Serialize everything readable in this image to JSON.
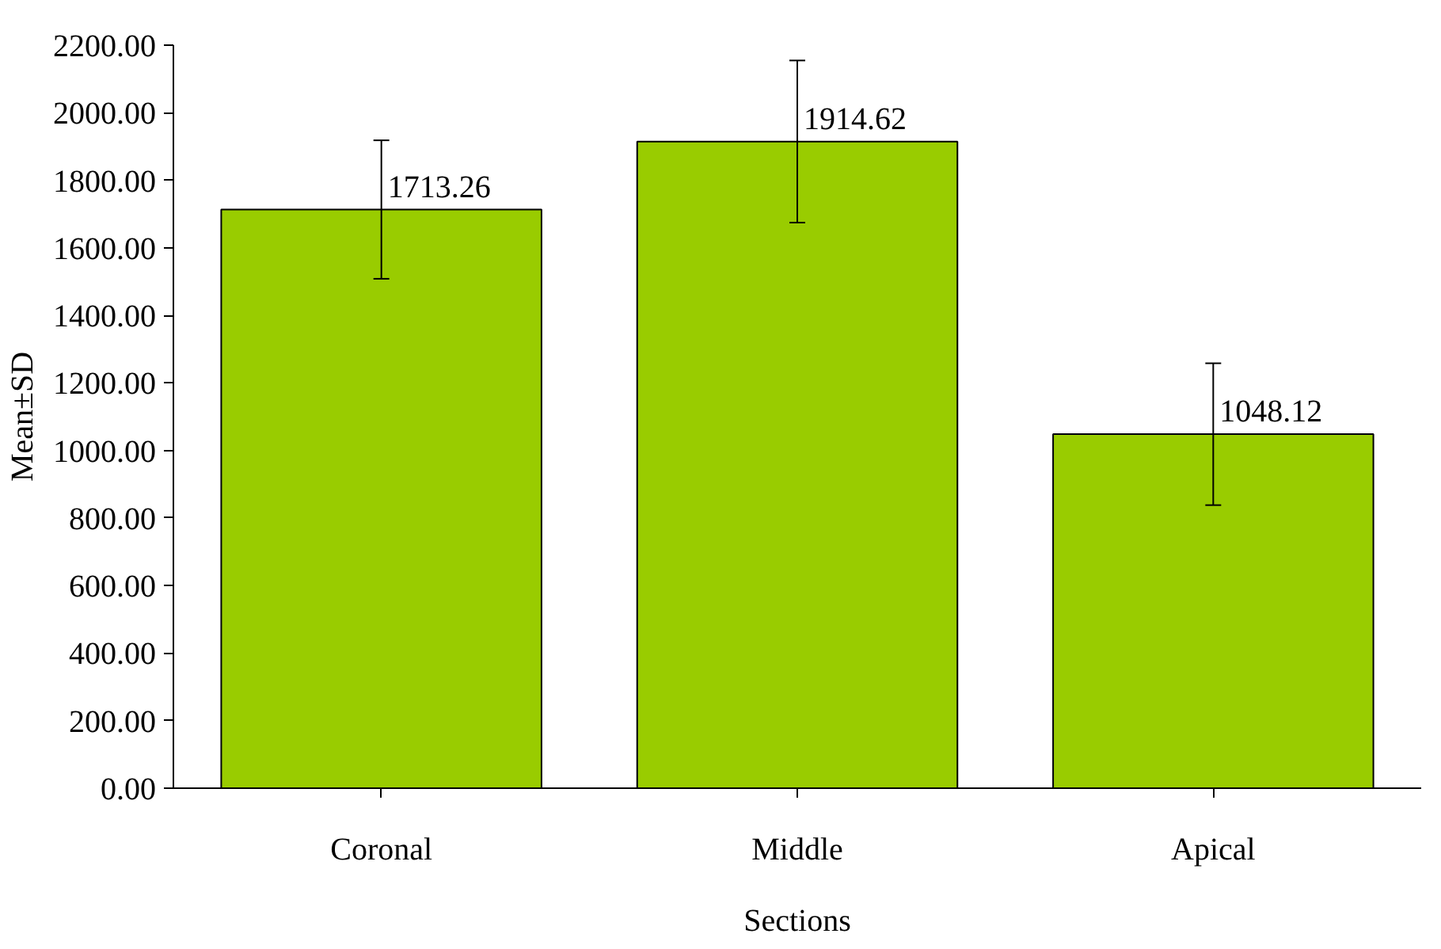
{
  "chart_data": {
    "type": "bar",
    "xlabel": "Sections",
    "ylabel": "Mean±SD",
    "categories": [
      "Coronal",
      "Middle",
      "Apical"
    ],
    "values": [
      1713.26,
      1914.62,
      1048.12
    ],
    "errors": [
      205,
      240,
      210
    ],
    "color": "#99cc00",
    "data_labels": true,
    "grid": false,
    "ylim": [
      0,
      2200
    ],
    "yticks": [
      {
        "value": 0,
        "label": "0.00"
      },
      {
        "value": 200,
        "label": "200.00"
      },
      {
        "value": 400,
        "label": "400.00"
      },
      {
        "value": 600,
        "label": "600.00"
      },
      {
        "value": 800,
        "label": "800.00"
      },
      {
        "value": 1000,
        "label": "1000.00"
      },
      {
        "value": 1200,
        "label": "1200.00"
      },
      {
        "value": 1400,
        "label": "1400.00"
      },
      {
        "value": 1600,
        "label": "1600.00"
      },
      {
        "value": 1800,
        "label": "1800.00"
      },
      {
        "value": 2000,
        "label": "2000.00"
      },
      {
        "value": 2200,
        "label": "2200.00"
      }
    ]
  }
}
